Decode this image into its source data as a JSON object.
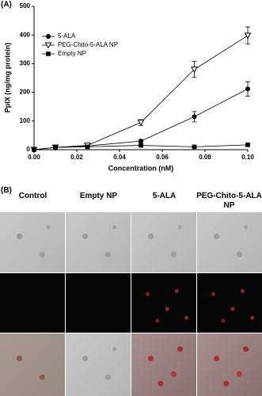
{
  "chart_data": {
    "type": "line",
    "panel_label": "(A)",
    "x_label": "Concentration (nM)",
    "y_label": "PpIX (ng/mg protein)",
    "x": [
      0,
      0.01,
      0.025,
      0.05,
      0.075,
      0.1
    ],
    "series": [
      {
        "name": "5-ALA",
        "color": "#000000",
        "marker": "circle",
        "values": [
          0,
          8,
          13,
          30,
          115,
          212
        ],
        "errors": [
          0,
          2,
          3,
          5,
          18,
          25
        ]
      },
      {
        "name": "PEG-Chito-5-ALA NP",
        "color": "#000000",
        "marker": "triangle-down-open",
        "values": [
          0,
          8,
          15,
          95,
          280,
          398
        ],
        "errors": [
          0,
          2,
          3,
          10,
          28,
          30
        ]
      },
      {
        "name": "Empty NP",
        "color": "#000000",
        "marker": "square",
        "values": [
          0,
          8,
          10,
          15,
          10,
          17
        ],
        "errors": [
          0,
          1,
          2,
          2,
          2,
          3
        ]
      }
    ],
    "xlim": [
      0,
      0.1
    ],
    "ylim": [
      0,
      500
    ],
    "xticks": [
      {
        "value": 0,
        "label": "0.00"
      },
      {
        "value": 0.02,
        "label": "0.02"
      },
      {
        "value": 0.04,
        "label": "0.04"
      },
      {
        "value": 0.06,
        "label": "0.06"
      },
      {
        "value": 0.08,
        "label": "0.08"
      },
      {
        "value": 0.1,
        "label": "0.10"
      }
    ],
    "yticks": [
      0,
      100,
      200,
      300,
      400,
      500
    ],
    "legend": "upper-left"
  },
  "panel_b": {
    "label": "(B)",
    "columns": [
      "Control",
      "Empty NP",
      "5-ALA",
      "PEG-Chito-5-ALA NP"
    ]
  }
}
